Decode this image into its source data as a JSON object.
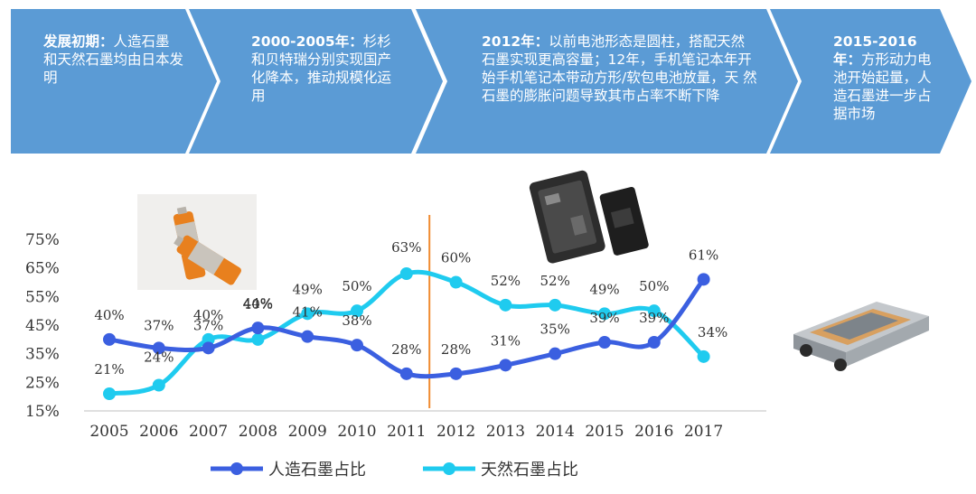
{
  "banner": {
    "stages": [
      {
        "head": "发展初期：",
        "body": "人造石墨和天然石墨均由日本发明"
      },
      {
        "head": "2000-2005年：",
        "body": "杉杉和贝特瑞分别实现国产化降本，推动规模化运用"
      },
      {
        "head": "2012年：",
        "body": "以前电池形态是圆柱，搭配天然石墨实现更高容量；12年，手机笔记本年开始手机笔记本带动方形/软包电池放量，天 然石墨的膨胀问题导致其市占率不断下降"
      },
      {
        "head": "2015-2016年：",
        "body": "方形动力电池开始起量，人造石墨进一步占据市场"
      }
    ],
    "color": "#5b9bd5"
  },
  "chart_data": {
    "type": "line",
    "categories": [
      "2005",
      "2006",
      "2007",
      "2008",
      "2009",
      "2010",
      "2011",
      "2012",
      "2013",
      "2014",
      "2015",
      "2016",
      "2017"
    ],
    "yticks": [
      "15%",
      "25%",
      "35%",
      "45%",
      "55%",
      "65%",
      "75%"
    ],
    "ylim": [
      15,
      75
    ],
    "series": [
      {
        "name": "人造石墨占比",
        "color": "#3b5fe0",
        "values": [
          40,
          37,
          37,
          44,
          41,
          38,
          28,
          28,
          31,
          35,
          39,
          39,
          61
        ],
        "labels": [
          "40%",
          "37%",
          "37%",
          "44%",
          "41%",
          "38%",
          "28%",
          "28%",
          "31%",
          "35%",
          "39%",
          "39%",
          "61%"
        ]
      },
      {
        "name": "天然石墨占比",
        "color": "#1fcbef",
        "values": [
          21,
          24,
          40,
          40,
          49,
          50,
          63,
          60,
          52,
          52,
          49,
          50,
          34
        ],
        "labels": [
          "21%",
          "24%",
          "40%",
          "40%",
          "49%",
          "50%",
          "63%",
          "60%",
          "52%",
          "52%",
          "49%",
          "50%",
          "34%"
        ]
      }
    ],
    "divider_color": "#f08a30",
    "legend_position": "bottom"
  }
}
